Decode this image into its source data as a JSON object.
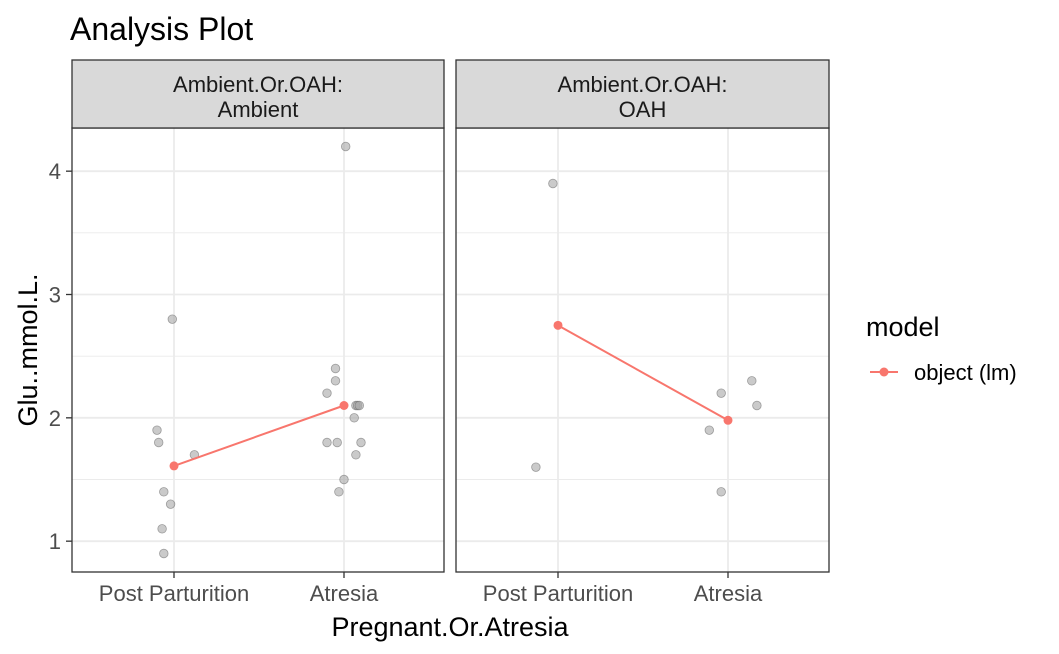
{
  "chart_data": {
    "type": "scatter",
    "title": "Analysis Plot",
    "xlabel": "Pregnant.Or.Atresia",
    "ylabel": "Glu..mmol.L.",
    "categories": [
      "Post Parturition",
      "Atresia"
    ],
    "ylim": [
      0.75,
      4.35
    ],
    "yticks": [
      1,
      2,
      3,
      4
    ],
    "grid": true,
    "legend": {
      "title": "model",
      "position": "right",
      "entries": [
        {
          "label": "object (lm)",
          "color": "#F8766D"
        }
      ]
    },
    "colors": {
      "points": "#8c8c8c",
      "model": "#F8766D",
      "strip": "#d9d9d9",
      "grid": "#ebebeb"
    },
    "facets": [
      {
        "strip": [
          "Ambient.Or.OAH:",
          "Ambient"
        ],
        "points": [
          {
            "x": "Post Parturition",
            "jitter": -0.1,
            "y": 1.9
          },
          {
            "x": "Post Parturition",
            "jitter": -0.09,
            "y": 1.8
          },
          {
            "x": "Post Parturition",
            "jitter": -0.06,
            "y": 1.4
          },
          {
            "x": "Post Parturition",
            "jitter": -0.07,
            "y": 1.1
          },
          {
            "x": "Post Parturition",
            "jitter": -0.06,
            "y": 0.9
          },
          {
            "x": "Post Parturition",
            "jitter": -0.02,
            "y": 1.3
          },
          {
            "x": "Post Parturition",
            "jitter": -0.01,
            "y": 2.8
          },
          {
            "x": "Post Parturition",
            "jitter": 0.12,
            "y": 1.7
          },
          {
            "x": "Atresia",
            "jitter": 0.01,
            "y": 4.2
          },
          {
            "x": "Atresia",
            "jitter": -0.05,
            "y": 2.4
          },
          {
            "x": "Atresia",
            "jitter": -0.05,
            "y": 2.3
          },
          {
            "x": "Atresia",
            "jitter": -0.1,
            "y": 2.2
          },
          {
            "x": "Atresia",
            "jitter": 0.07,
            "y": 2.1
          },
          {
            "x": "Atresia",
            "jitter": 0.08,
            "y": 2.1
          },
          {
            "x": "Atresia",
            "jitter": 0.09,
            "y": 2.1
          },
          {
            "x": "Atresia",
            "jitter": 0.06,
            "y": 2.0
          },
          {
            "x": "Atresia",
            "jitter": -0.1,
            "y": 1.8
          },
          {
            "x": "Atresia",
            "jitter": -0.04,
            "y": 1.8
          },
          {
            "x": "Atresia",
            "jitter": 0.1,
            "y": 1.8
          },
          {
            "x": "Atresia",
            "jitter": 0.07,
            "y": 1.7
          },
          {
            "x": "Atresia",
            "jitter": 0.0,
            "y": 1.5
          },
          {
            "x": "Atresia",
            "jitter": -0.03,
            "y": 1.4
          }
        ],
        "model": [
          {
            "x": "Post Parturition",
            "y": 1.61
          },
          {
            "x": "Atresia",
            "y": 2.1
          }
        ]
      },
      {
        "strip": [
          "Ambient.Or.OAH:",
          "OAH"
        ],
        "points": [
          {
            "x": "Post Parturition",
            "jitter": -0.03,
            "y": 3.9
          },
          {
            "x": "Post Parturition",
            "jitter": -0.13,
            "y": 1.6
          },
          {
            "x": "Atresia",
            "jitter": 0.14,
            "y": 2.3
          },
          {
            "x": "Atresia",
            "jitter": 0.17,
            "y": 2.1
          },
          {
            "x": "Atresia",
            "jitter": -0.04,
            "y": 2.2
          },
          {
            "x": "Atresia",
            "jitter": -0.11,
            "y": 1.9
          },
          {
            "x": "Atresia",
            "jitter": -0.04,
            "y": 1.4
          }
        ],
        "model": [
          {
            "x": "Post Parturition",
            "y": 2.75
          },
          {
            "x": "Atresia",
            "y": 1.98
          }
        ]
      }
    ]
  }
}
